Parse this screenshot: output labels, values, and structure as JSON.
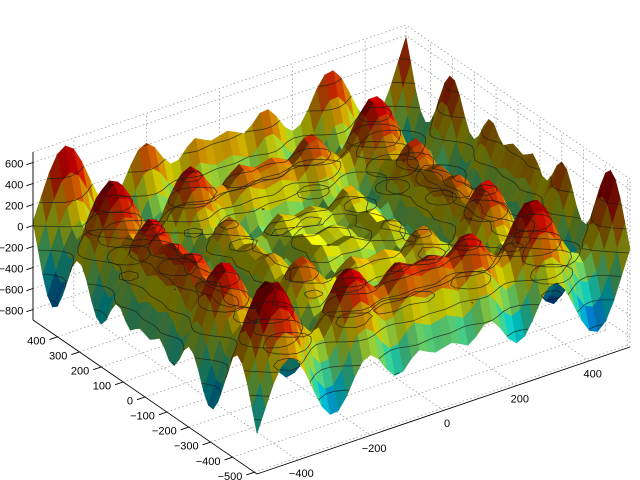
{
  "chart_data": {
    "type": "surface3d",
    "title": "",
    "xlabel": "",
    "ylabel": "",
    "zlabel": "",
    "grid": true,
    "colormap": "jet",
    "lighting": "phong",
    "contours": true,
    "xlim": [
      -512,
      512
    ],
    "ylim": [
      -512,
      512
    ],
    "zlim": [
      -900,
      700
    ],
    "x_ticks": [
      -400,
      -200,
      0,
      200,
      400
    ],
    "x_tick_labels": [
      "−400",
      "−200",
      "0",
      "200",
      "400"
    ],
    "y_ticks": [
      -500,
      -400,
      -300,
      -200,
      -100,
      0,
      100,
      200,
      300,
      400
    ],
    "y_tick_labels": [
      "−500",
      "−400",
      "−300",
      "−200",
      "−100",
      "0",
      "100",
      "200",
      "300",
      "400"
    ],
    "z_ticks": [
      -800,
      -600,
      -400,
      -200,
      0,
      200,
      400,
      600
    ],
    "z_tick_labels": [
      "−800",
      "−600",
      "−400",
      "−200",
      "0",
      "200",
      "400",
      "600"
    ],
    "contour_levels": [
      -600,
      -400,
      -200,
      0,
      200,
      400
    ],
    "surface": {
      "x_range": [
        -512,
        512
      ],
      "y_range": [
        -512,
        512
      ],
      "z_range": [
        -860,
        680
      ],
      "peaks": [
        {
          "x": -430,
          "y": 430,
          "z": 580
        },
        {
          "x": -200,
          "y": 280,
          "z": 640
        },
        {
          "x": 30,
          "y": 450,
          "z": 540
        },
        {
          "x": 230,
          "y": 200,
          "z": 620
        },
        {
          "x": 440,
          "y": 430,
          "z": 560
        },
        {
          "x": -380,
          "y": -60,
          "z": 600
        },
        {
          "x": 380,
          "y": 50,
          "z": 580
        },
        {
          "x": -250,
          "y": -300,
          "z": 660
        },
        {
          "x": 20,
          "y": -430,
          "z": 590
        },
        {
          "x": 260,
          "y": -420,
          "z": 620
        },
        {
          "x": 440,
          "y": -440,
          "z": 530
        }
      ]
    }
  }
}
